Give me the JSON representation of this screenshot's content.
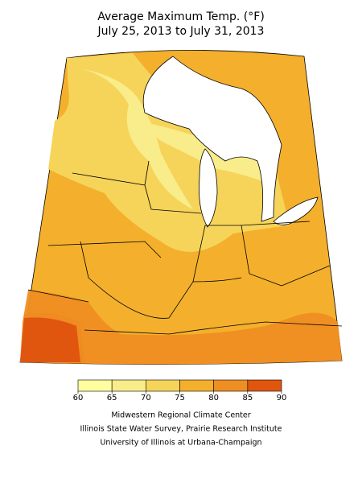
{
  "header": {
    "title": [
      "Average Maximum Temp. (°F)",
      "July 25, 2013 to July 31, 2013"
    ]
  },
  "legend": {
    "ticks": [
      60,
      65,
      70,
      75,
      80,
      85,
      90
    ],
    "colors": [
      "#ffffa0",
      "#f9ec8a",
      "#f6d45a",
      "#f4b02c",
      "#ef8e22",
      "#e0560e"
    ]
  },
  "credits": [
    "Midwestern Regional Climate Center",
    "Illinois State Water Survey, Prairie Research Institute",
    "University of Illinois at Urbana-Champaign"
  ]
}
